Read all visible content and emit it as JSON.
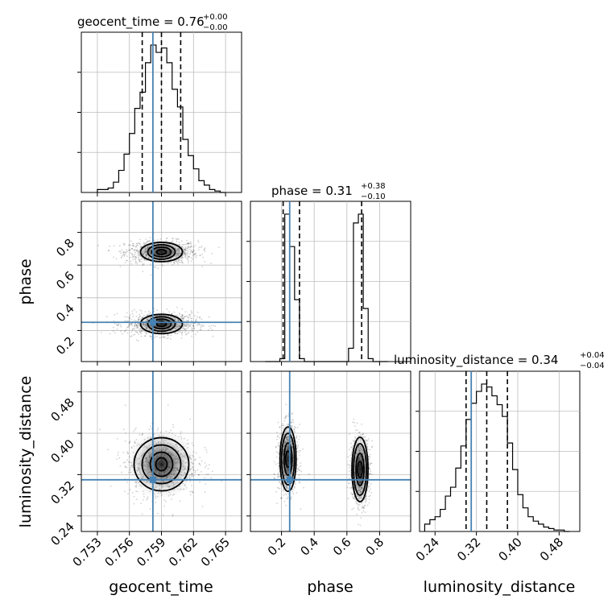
{
  "chart_data": {
    "type": "corner",
    "parameters": [
      "geocent_time",
      "phase",
      "luminosity_distance"
    ],
    "truths": {
      "geocent_time": 0.7582,
      "phase": 0.25,
      "luminosity_distance": 0.31
    },
    "ranges": {
      "geocent_time": [
        0.7515,
        0.7665
      ],
      "phase": [
        0.01,
        0.99
      ],
      "luminosity_distance": [
        0.21,
        0.52
      ]
    },
    "grid": true,
    "titles": {
      "geocent_time": {
        "label": "geocent_time = 0.76",
        "sup": "+0.00",
        "sub": "−0.00"
      },
      "phase": {
        "label": "phase = 0.31",
        "sup": "+0.38",
        "sub": "−0.10"
      },
      "luminosity_distance": {
        "label": "luminosity_distance = 0.34",
        "sup": "+0.04",
        "sub": "−0.04"
      }
    },
    "axis_labels": {
      "x": [
        "geocent_time",
        "phase",
        "luminosity_distance"
      ],
      "y": [
        "phase",
        "luminosity_distance"
      ]
    },
    "ticks": {
      "geocent_time": [
        "0.753",
        "0.756",
        "0.759",
        "0.762",
        "0.765"
      ],
      "phase": [
        "0.2",
        "0.4",
        "0.6",
        "0.8"
      ],
      "luminosity_distance": [
        "0.24",
        "0.32",
        "0.40",
        "0.48"
      ]
    },
    "tick_values": {
      "geocent_time": [
        0.753,
        0.756,
        0.759,
        0.762,
        0.765
      ],
      "phase": [
        0.2,
        0.4,
        0.6,
        0.8
      ],
      "luminosity_distance": [
        0.24,
        0.32,
        0.4,
        0.48
      ]
    },
    "quantiles": {
      "geocent_time": [
        0.7572,
        0.759,
        0.7608
      ],
      "phase": [
        0.21,
        0.31,
        0.69
      ],
      "luminosity_distance": [
        0.3,
        0.34,
        0.38
      ]
    },
    "histograms": {
      "geocent_time": {
        "bins": [
          0.753,
          0.7535,
          0.754,
          0.7545,
          0.755,
          0.7555,
          0.756,
          0.7565,
          0.757,
          0.7575,
          0.758,
          0.7585,
          0.759,
          0.7595,
          0.76,
          0.7605,
          0.761,
          0.7615,
          0.762,
          0.7625,
          0.763,
          0.7635,
          0.764,
          0.7645,
          0.765
        ],
        "counts": [
          2,
          2,
          3,
          7,
          15,
          26,
          40,
          57,
          68,
          88,
          100,
          95,
          98,
          88,
          70,
          58,
          36,
          25,
          16,
          8,
          5,
          2,
          1,
          0
        ]
      },
      "phase": {
        "bins": [
          0.1,
          0.13,
          0.16,
          0.19,
          0.22,
          0.25,
          0.28,
          0.31,
          0.34,
          0.37,
          0.4,
          0.43,
          0.46,
          0.49,
          0.52,
          0.55,
          0.58,
          0.61,
          0.64,
          0.67,
          0.7,
          0.73,
          0.76,
          0.79,
          0.82,
          0.85
        ],
        "counts": [
          0,
          0,
          0,
          2,
          100,
          78,
          42,
          2,
          0,
          0,
          0,
          0,
          0,
          0,
          0,
          0,
          0,
          9,
          94,
          100,
          36,
          2,
          0,
          0,
          0
        ]
      },
      "luminosity_distance": {
        "bins": [
          0.22,
          0.23,
          0.24,
          0.25,
          0.26,
          0.27,
          0.28,
          0.29,
          0.3,
          0.31,
          0.32,
          0.33,
          0.34,
          0.35,
          0.36,
          0.37,
          0.38,
          0.39,
          0.4,
          0.41,
          0.42,
          0.43,
          0.44,
          0.45,
          0.46,
          0.47,
          0.48,
          0.49,
          0.5
        ],
        "counts": [
          5,
          8,
          10,
          15,
          24,
          30,
          43,
          58,
          76,
          87,
          95,
          100,
          98,
          92,
          86,
          78,
          60,
          42,
          25,
          16,
          10,
          7,
          5,
          3,
          2,
          1,
          1,
          0
        ]
      }
    },
    "contour_centers": {
      "phase_vs_geocent_time": [
        {
          "x": 0.759,
          "y": 0.68
        },
        {
          "x": 0.759,
          "y": 0.24
        }
      ],
      "luminosity_distance_vs_geocent_time": [
        {
          "x": 0.759,
          "y": 0.34
        }
      ],
      "luminosity_distance_vs_phase": [
        {
          "x": 0.24,
          "y": 0.35
        },
        {
          "x": 0.68,
          "y": 0.33
        }
      ]
    },
    "truth_color": "#4682b4"
  }
}
